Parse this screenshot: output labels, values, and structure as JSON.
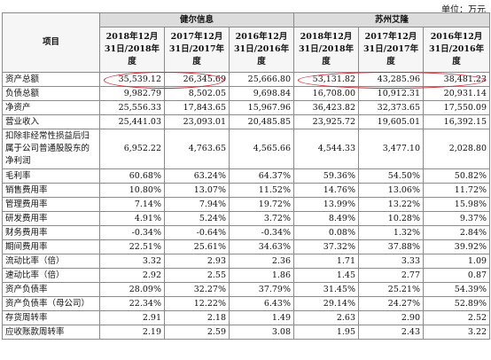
{
  "unit_label": "单位：万元",
  "header": {
    "item_label": "项目",
    "groups": [
      {
        "name": "健尔信息"
      },
      {
        "name": "苏州艾隆"
      }
    ],
    "periods": [
      "2018年12月31日/2018年度",
      "2017年12月31日/2017年度",
      "2016年12月31日/2016年度",
      "2018年12月31日/2018年度",
      "2017年12月31日/2017年度",
      "2016年12月31日/2016年度"
    ]
  },
  "rows": [
    {
      "label": "资产总额",
      "values": [
        "35,539.12",
        "26,345.69",
        "25,666.80",
        "53,131.82",
        "43,285.96",
        "38,481.23"
      ]
    },
    {
      "label": "负债总额",
      "values": [
        "9,982.79",
        "8,502.05",
        "9,698.84",
        "16,708.00",
        "10,912.31",
        "20,931.14"
      ]
    },
    {
      "label": "净资产",
      "values": [
        "25,556.33",
        "17,843.65",
        "15,967.96",
        "36,423.82",
        "32,373.65",
        "17,550.09"
      ]
    },
    {
      "label": "营业收入",
      "values": [
        "25,441.03",
        "23,093.01",
        "20,485.85",
        "23,925.72",
        "19,605.01",
        "16,392.15"
      ]
    },
    {
      "label": "扣除非经常性损益后归属于公司普通股股东的净利润",
      "values": [
        "6,952.22",
        "4,763.65",
        "4,565.66",
        "4,544.33",
        "3,477.10",
        "2,028.80"
      ],
      "tall": true
    },
    {
      "label": "毛利率",
      "values": [
        "60.68%",
        "63.24%",
        "64.37%",
        "59.36%",
        "54.50%",
        "50.82%"
      ]
    },
    {
      "label": "销售费用率",
      "values": [
        "10.80%",
        "13.07%",
        "11.52%",
        "14.76%",
        "13.06%",
        "11.72%"
      ]
    },
    {
      "label": "管理费用率",
      "values": [
        "7.14%",
        "7.94%",
        "19.72%",
        "13.99%",
        "13.22%",
        "15.98%"
      ]
    },
    {
      "label": "研发费用率",
      "values": [
        "4.91%",
        "5.24%",
        "3.72%",
        "8.49%",
        "10.28%",
        "9.37%"
      ]
    },
    {
      "label": "财务费用率",
      "values": [
        "-0.34%",
        "-0.64%",
        "-0.34%",
        "0.08%",
        "1.32%",
        "2.84%"
      ]
    },
    {
      "label": "期间费用率",
      "values": [
        "22.51%",
        "25.61%",
        "34.63%",
        "37.32%",
        "37.88%",
        "39.92%"
      ]
    },
    {
      "label": "流动比率（倍）",
      "values": [
        "3.32",
        "2.93",
        "2.36",
        "1.71",
        "3.33",
        "1.09"
      ]
    },
    {
      "label": "速动比率（倍）",
      "values": [
        "2.92",
        "2.55",
        "1.86",
        "1.45",
        "2.77",
        "0.87"
      ]
    },
    {
      "label": "资产负债率",
      "values": [
        "28.09%",
        "32.27%",
        "37.79%",
        "31.45%",
        "25.21%",
        "54.39%"
      ]
    },
    {
      "label": "资产负债率（母公司）",
      "values": [
        "22.34%",
        "12.22%",
        "6.43%",
        "29.14%",
        "24.27%",
        "52.89%"
      ]
    },
    {
      "label": "存货周转率",
      "values": [
        "2.91",
        "2.18",
        "1.49",
        "2.63",
        "2.90",
        "2.52"
      ]
    },
    {
      "label": "应收账款周转率",
      "values": [
        "2.19",
        "2.59",
        "3.08",
        "1.95",
        "2.43",
        "3.22"
      ]
    }
  ],
  "colors": {
    "highlight": "#d9232e",
    "group_header_bg": "#dcdcdc"
  }
}
